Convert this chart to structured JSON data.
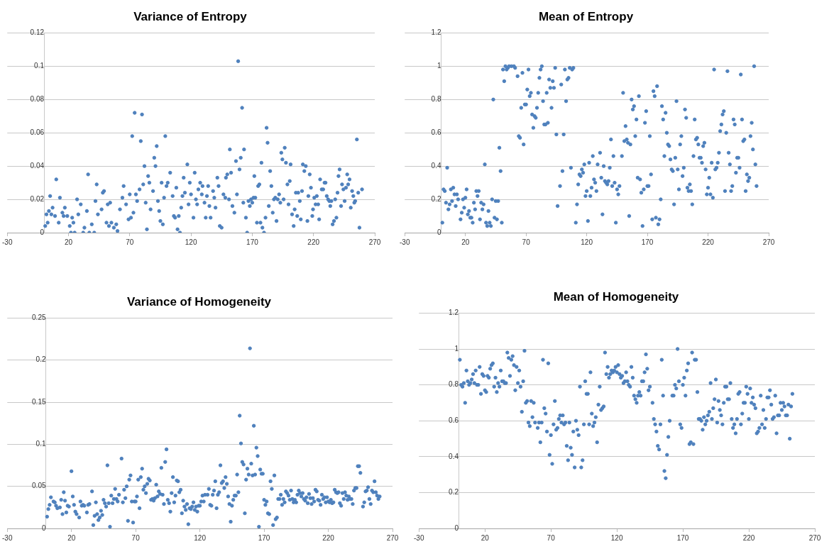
{
  "chart_data": [
    {
      "type": "scatter",
      "title": "Variance of Entropy",
      "color": "#4f81bd",
      "marker": "circle",
      "grid": "y",
      "xlim": [
        -30,
        270
      ],
      "xticks": [
        -30,
        20,
        70,
        120,
        170,
        220,
        270
      ],
      "ylim": [
        0,
        0.12
      ],
      "yticks": [
        0,
        0.02,
        0.04,
        0.06,
        0.08,
        0.1,
        0.12
      ],
      "x": [
        1,
        2,
        3,
        4,
        5,
        6,
        7,
        9,
        10,
        12,
        13,
        15,
        16,
        17,
        19,
        21,
        22,
        23,
        24,
        25,
        27,
        28,
        30,
        32,
        33,
        35,
        36,
        37,
        39,
        41,
        42,
        43,
        44,
        47,
        48,
        49,
        51,
        52,
        53,
        54,
        55,
        57,
        59,
        60,
        62,
        64,
        65,
        67,
        69,
        70,
        71,
        72,
        73,
        74,
        75,
        76,
        78,
        79,
        80,
        81,
        82,
        83,
        84,
        85,
        86,
        87,
        89,
        90,
        91,
        92,
        93,
        94,
        95,
        96,
        97,
        98,
        99,
        100,
        101,
        103,
        105,
        106,
        107,
        108,
        109,
        110,
        111,
        112,
        113,
        114,
        115,
        117,
        118,
        119,
        120,
        122,
        123,
        124,
        125,
        126,
        127.5,
        128.8,
        129.4,
        131,
        132,
        133,
        134,
        135,
        136,
        138,
        139,
        140,
        141.5,
        142.5,
        143.5,
        145,
        146.5,
        148,
        148.5,
        149.6,
        151,
        151.7,
        152.7,
        153.8,
        155.4,
        156.7,
        157.5,
        158.5,
        159.6,
        160.6,
        161.7,
        162.7,
        163.3,
        164.8,
        165.8,
        166.9,
        168,
        169,
        170,
        171,
        171.7,
        172.5,
        173.8,
        174.8,
        175.8,
        176.7,
        177.5,
        178.3,
        179.6,
        180.8,
        181.7,
        182.5,
        183.5,
        184.6,
        185.6,
        186.7,
        187.7,
        188.8,
        189.8,
        190.8,
        191.9,
        192.9,
        193.7,
        194.6,
        195.6,
        196.5,
        197.5,
        198.7,
        199.6,
        200.6,
        201.3,
        202.5,
        203.8,
        204.6,
        205.6,
        206.7,
        207.5,
        208.8,
        209.6,
        210.6,
        211.3,
        212.5,
        213.7,
        215,
        215.8,
        216.9,
        217.9,
        219,
        219.6,
        220.6,
        221.7,
        222.7,
        223.8,
        224.6,
        225.4,
        226.7,
        227.9,
        229,
        229.8,
        230.8,
        231.9,
        232.9,
        233.7,
        234.6,
        235.6,
        236.7,
        237.7,
        238.7,
        239.6,
        240.4,
        241.3,
        242.5,
        243.3,
        244.4,
        245.4,
        246.5,
        247.5,
        248.3,
        249.4,
        250.4,
        251.5,
        252.5,
        253.3,
        254,
        255.4,
        256.5,
        257.5,
        259.6
      ],
      "values": [
        0.004,
        0.011,
        0.006,
        0.013,
        0.022,
        0.011,
        0.015,
        0.01,
        0.032,
        0.006,
        0.021,
        0.012,
        0.01,
        0.015,
        0.01,
        0.004,
        0,
        0.009,
        0.006,
        0,
        0.02,
        0.011,
        0.017,
        0,
        0.003,
        0.013,
        0.035,
        0,
        0.005,
        0,
        0.019,
        0.029,
        0.011,
        0.014,
        0.024,
        0.025,
        0.006,
        0.017,
        0.004,
        0.018,
        0.006,
        0.003,
        0.005,
        0.001,
        0.014,
        0.021,
        0.028,
        0.017,
        0.008,
        0.023,
        0.009,
        0.058,
        0.012,
        0.072,
        0.023,
        0.019,
        0.026,
        0.055,
        0.071,
        0.029,
        0.04,
        0.018,
        0.002,
        0.034,
        0.03,
        0.014,
        0.025,
        0.045,
        0.04,
        0.052,
        0.019,
        0.013,
        0.007,
        0.03,
        0.005,
        0.021,
        0.058,
        0.028,
        0.03,
        0.036,
        0.022,
        0.01,
        0.009,
        0.027,
        0.002,
        0.01,
        0,
        0.015,
        0.022,
        0.033,
        0.024,
        0.041,
        0.017,
        0.03,
        0.023,
        0.009,
        0.036,
        0.02,
        0.017,
        0.026,
        0.03,
        0.023,
        0.028,
        0.018,
        0.009,
        0.022,
        0.028,
        0.016,
        0.009,
        0.025,
        0.021,
        0.015,
        0.033,
        0.028,
        0.004,
        0.003,
        0.023,
        0.021,
        0.033,
        0.035,
        0.02,
        0.05,
        0.036,
        0.016,
        0.012,
        0.043,
        0.023,
        0.103,
        0.038,
        0.045,
        0.075,
        0.018,
        0.05,
        0.009,
        0,
        0.019,
        0.016,
        0.02,
        0.018,
        0.021,
        0.034,
        0.021,
        0.006,
        0.028,
        0.029,
        0.006,
        0.042,
        0.003,
        0,
        0.009,
        0.063,
        0.054,
        0.016,
        0.037,
        0.028,
        0.012,
        0.02,
        0.021,
        0.007,
        0.02,
        0.023,
        0.018,
        0.048,
        0.044,
        0.02,
        0.051,
        0.042,
        0.029,
        0.017,
        0.031,
        0.041,
        0.011,
        0.004,
        0.014,
        0.024,
        0.01,
        0.024,
        0.019,
        0.008,
        0.025,
        0.041,
        0.037,
        0.04,
        0.007,
        0.022,
        0.035,
        0.027,
        0.01,
        0.014,
        0.021,
        0.017,
        0.022,
        0.017,
        0.008,
        0.032,
        0.026,
        0.026,
        0.03,
        0.03,
        0.022,
        0.02,
        0.019,
        0.016,
        0.019,
        0.005,
        0.007,
        0.02,
        0.009,
        0.024,
        0.034,
        0.038,
        0.016,
        0.029,
        0.026,
        0.019,
        0.027,
        0.035,
        0.029,
        0.032,
        0.015,
        0.025,
        0.022,
        0.018,
        0.019,
        0.056,
        0.024,
        0.003,
        0.026
      ]
    },
    {
      "type": "scatter",
      "title": "Mean of Entropy",
      "color": "#4f81bd",
      "marker": "circle",
      "grid": "y",
      "xlim": [
        -30,
        270
      ],
      "xticks": [
        -30,
        20,
        70,
        120,
        170,
        220,
        270
      ],
      "ylim": [
        0,
        1.2
      ],
      "yticks": [
        0,
        0.2,
        0.4,
        0.6,
        0.8,
        1,
        1.2
      ],
      "x": [
        1,
        2,
        3,
        4,
        5,
        6,
        7,
        8,
        9,
        10,
        11,
        12,
        13,
        14,
        16,
        17,
        18,
        19,
        20,
        21,
        22,
        23,
        24,
        25,
        26,
        27,
        28,
        29,
        30,
        31,
        32,
        33,
        34,
        35,
        36,
        37,
        38,
        39,
        40,
        41,
        42,
        43,
        44,
        45,
        46,
        47,
        48,
        49,
        50,
        51,
        52,
        53,
        54,
        55,
        56,
        58,
        60,
        61,
        63,
        64,
        65,
        66,
        67,
        68,
        69,
        70,
        71,
        72,
        73,
        74,
        75,
        76,
        77,
        78,
        79,
        80,
        81,
        82,
        83,
        84,
        85,
        86,
        87,
        88,
        89,
        90,
        91,
        92,
        93,
        94,
        95,
        96,
        98,
        99,
        100,
        101,
        102,
        103,
        104,
        105,
        106,
        107,
        108,
        109,
        111,
        112,
        113,
        114,
        115,
        116,
        117,
        118,
        119,
        120,
        121,
        122,
        123,
        124,
        125,
        126,
        127,
        128,
        129,
        131,
        132,
        133,
        134,
        135,
        136,
        137,
        138,
        139,
        140,
        141,
        142,
        143,
        144,
        145,
        146,
        147,
        149,
        150,
        151,
        152,
        153,
        154,
        155,
        156,
        157,
        158,
        159,
        160,
        161,
        162,
        163,
        164,
        165,
        166,
        167,
        168,
        169,
        170,
        171,
        172,
        173,
        174,
        175,
        176,
        177,
        178,
        179,
        180,
        181,
        182,
        183,
        184,
        185,
        186,
        187,
        188,
        189,
        190,
        191,
        192,
        193,
        194,
        195,
        196,
        197,
        198,
        199,
        200,
        201,
        202,
        203,
        204,
        205,
        206,
        207,
        208,
        209,
        210,
        211,
        212,
        213,
        214,
        215,
        216,
        217,
        218,
        219,
        220,
        221,
        222,
        223,
        224,
        225,
        226,
        227,
        228,
        229,
        230,
        231,
        232,
        233,
        234,
        235,
        236,
        237,
        238,
        239,
        240,
        241,
        242,
        243,
        244,
        245,
        246,
        247,
        248,
        249,
        250,
        251,
        252,
        253,
        254,
        255,
        256,
        257,
        258,
        259,
        260
      ],
      "values": [
        0.06,
        0.26,
        0.25,
        0.18,
        0.39,
        0.14,
        0.17,
        0.26,
        0.19,
        0.27,
        0.23,
        0.16,
        0.23,
        0.2,
        0.08,
        0.12,
        0.2,
        0.15,
        0.21,
        0.26,
        0.11,
        0.13,
        0.09,
        0.09,
        0.06,
        0.18,
        0.14,
        0.25,
        0.22,
        0.25,
        0.08,
        0.18,
        0.14,
        0.17,
        0.41,
        0.06,
        0.04,
        0.13,
        0.06,
        0.04,
        0.2,
        0.8,
        0.09,
        0.19,
        0.08,
        0.19,
        0.51,
        0.37,
        0.06,
        0.98,
        0.91,
        1,
        0.98,
        0.99,
        1,
        1,
        1,
        0.99,
        0.94,
        0.58,
        0.57,
        0.75,
        0.96,
        0.53,
        0.77,
        0.77,
        0.86,
        0.98,
        0.82,
        0.84,
        0.71,
        0.63,
        0.7,
        0.69,
        0.75,
        0.84,
        0.93,
        0.98,
        1,
        0.79,
        0.65,
        0.65,
        0.84,
        0.66,
        0.92,
        0.87,
        0.75,
        0.91,
        0.87,
        0.99,
        0.59,
        0.16,
        0.28,
        0.89,
        0.37,
        0.59,
        0.98,
        0.79,
        0.92,
        0.93,
        0.99,
        0.39,
        0.98,
        0.99,
        0.06,
        0.17,
        0.29,
        0.35,
        0.34,
        0.38,
        0.36,
        0.41,
        0.22,
        0.25,
        0.07,
        0.42,
        0.22,
        0.27,
        0.46,
        0.32,
        0.3,
        0.25,
        0.41,
        0.48,
        0.33,
        0.11,
        0.4,
        0.31,
        0.3,
        0.29,
        0.31,
        0.39,
        0.56,
        0.28,
        0.46,
        0.3,
        0.06,
        0.26,
        0.23,
        0.28,
        0.46,
        0.84,
        0.55,
        0.64,
        0.56,
        0.54,
        0.1,
        0.53,
        0.8,
        0.74,
        0.76,
        0.58,
        0.68,
        0.33,
        0.82,
        0.32,
        0.24,
        0.04,
        0.26,
        0.66,
        0.73,
        0.28,
        0.28,
        0.58,
        0.35,
        0.08,
        0.85,
        0.82,
        0.09,
        0.88,
        0.05,
        0.08,
        0.2,
        0.76,
        0.68,
        0.46,
        0.72,
        0.6,
        0.53,
        0.52,
        0.44,
        0.38,
        0.37,
        0.17,
        0.45,
        0.79,
        0.38,
        0.26,
        0.53,
        0.58,
        0.34,
        0.39,
        0.74,
        0.69,
        0.27,
        0.25,
        0.29,
        0.25,
        0.17,
        0.46,
        0.68,
        0.56,
        0.57,
        0.53,
        0.45,
        0.45,
        0.42,
        0.52,
        0.54,
        0.38,
        0.23,
        0.27,
        0.33,
        0.23,
        0.42,
        0.21,
        0.98,
        0.38,
        0.39,
        0.42,
        0.48,
        0.61,
        0.65,
        0.71,
        0.73,
        0.25,
        0.6,
        0.97,
        0.48,
        0.41,
        0.25,
        0.28,
        0.68,
        0.65,
        0.36,
        0.45,
        0.45,
        0.39,
        0.95,
        0.68,
        0.55,
        0.56,
        0.25,
        0.35,
        0.31,
        0.33,
        0.58,
        0.66,
        0.5,
        1,
        0.41,
        0.28
      ]
    },
    {
      "type": "scatter",
      "title": "Variance of Homogeneity",
      "color": "#4f81bd",
      "marker": "circle",
      "grid": "y",
      "xlim": [
        -30,
        270
      ],
      "xticks": [
        -30,
        20,
        70,
        120,
        170,
        220,
        270
      ],
      "ylim": [
        0,
        0.25
      ],
      "yticks": [
        0,
        0.05,
        0.1,
        0.15,
        0.2,
        0.25
      ],
      "x": [
        1,
        2,
        3,
        4,
        6,
        7,
        8,
        9,
        11,
        12,
        13,
        14,
        15,
        16,
        17,
        18,
        20,
        21,
        22,
        23,
        24,
        26,
        27,
        28,
        29,
        30,
        32,
        33,
        34,
        36,
        37,
        38,
        39,
        40,
        41,
        42,
        43,
        44,
        45,
        46,
        47,
        48,
        49,
        50,
        51,
        52,
        53,
        54,
        55,
        56,
        57,
        59,
        60,
        61,
        62,
        63,
        64,
        65,
        66,
        67,
        68,
        69,
        70,
        71,
        72,
        73,
        74,
        75,
        76,
        77,
        78,
        79,
        80,
        81,
        82,
        83,
        84,
        85,
        86,
        87,
        88,
        89,
        90,
        91,
        92,
        93,
        94,
        95,
        96,
        97,
        98,
        99,
        100,
        101,
        102,
        103,
        104,
        105,
        106,
        107,
        108,
        109,
        110,
        111,
        112,
        113,
        114,
        115,
        116,
        117,
        118,
        119,
        120,
        121,
        122,
        123,
        124,
        126,
        127,
        128,
        129,
        130,
        131,
        132,
        133,
        134,
        135,
        136,
        137,
        138,
        139,
        140,
        141,
        142,
        143,
        144,
        145,
        146,
        147,
        148,
        149,
        150,
        151,
        152,
        153,
        154,
        155,
        156,
        157,
        158,
        159,
        160,
        161,
        162,
        163,
        164,
        165,
        166,
        167,
        168,
        169,
        170,
        171,
        172,
        173,
        174,
        175,
        176,
        177,
        178,
        179,
        180,
        181,
        182,
        183,
        184,
        185,
        186,
        187,
        188,
        189,
        190,
        191,
        192,
        193,
        194,
        195,
        196,
        197,
        198,
        199,
        200,
        201,
        202,
        203,
        204,
        205,
        206,
        207,
        208,
        209,
        210,
        211,
        212,
        213,
        214,
        215,
        216,
        217,
        218,
        219,
        220,
        221,
        222,
        223,
        224,
        225,
        226,
        227,
        228,
        229,
        230,
        231,
        232,
        233,
        234,
        235,
        236,
        237,
        238,
        239,
        240,
        241,
        242,
        243,
        244,
        245,
        247,
        248,
        249,
        250,
        251,
        252,
        253,
        254,
        255,
        256,
        257,
        258,
        259,
        260
      ],
      "values": [
        0.014,
        0.023,
        0.028,
        0.037,
        0.032,
        0.031,
        0.027,
        0.024,
        0.025,
        0.034,
        0.017,
        0.043,
        0.033,
        0.019,
        0.027,
        0.026,
        0.068,
        0.038,
        0.028,
        0.02,
        0.017,
        0.013,
        0.032,
        0.027,
        0.028,
        0.027,
        0.019,
        0.028,
        0.029,
        0.044,
        0.004,
        0.015,
        0.031,
        0.017,
        0.01,
        0.013,
        0.021,
        0.016,
        0.034,
        0.03,
        0.026,
        0.075,
        0.03,
        0.002,
        0.039,
        0.03,
        0.035,
        0.047,
        0.035,
        0.032,
        0.04,
        0.083,
        0.031,
        0.046,
        0.036,
        0.05,
        0.009,
        0.058,
        0.063,
        0.032,
        0.007,
        0.032,
        0.032,
        0.038,
        0.058,
        0.024,
        0.061,
        0.071,
        0.046,
        0.05,
        0.042,
        0.053,
        0.059,
        0.057,
        0.034,
        0.035,
        0.033,
        0.036,
        0.052,
        0.038,
        0.044,
        0.041,
        0.072,
        0.04,
        0.029,
        0.079,
        0.094,
        0.034,
        0.03,
        0.02,
        0.042,
        0.061,
        0.031,
        0.039,
        0.057,
        0.056,
        0.043,
        0.046,
        0.018,
        0.033,
        0.026,
        0.022,
        0.029,
        0.005,
        0.024,
        0.023,
        0.026,
        0.031,
        0.022,
        0.026,
        0.02,
        0.027,
        0.027,
        0.032,
        0.039,
        0.032,
        0.04,
        0.04,
        0.047,
        0.028,
        0.027,
        0.04,
        0.045,
        0.056,
        0.024,
        0.04,
        0.043,
        0.075,
        0.054,
        0.056,
        0.048,
        0.061,
        0.053,
        0.038,
        0.029,
        0.008,
        0.027,
        0.034,
        0.039,
        0.039,
        0.064,
        0.043,
        0.134,
        0.101,
        0.079,
        0.076,
        0.018,
        0.058,
        0.071,
        0.064,
        0.214,
        0.077,
        0.063,
        0.122,
        0.064,
        0.096,
        0.086,
        0.002,
        0.07,
        0.065,
        0.065,
        0.034,
        0.028,
        0.032,
        0.018,
        0.017,
        0.056,
        0.047,
        0.004,
        0.063,
        0.011,
        0.013,
        0.035,
        0.035,
        0.04,
        0.028,
        0.035,
        0.031,
        0.044,
        0.042,
        0.039,
        0.034,
        0.045,
        0.035,
        0.031,
        0.034,
        0.031,
        0.04,
        0.045,
        0.042,
        0.038,
        0.042,
        0.035,
        0.033,
        0.037,
        0.03,
        0.041,
        0.036,
        0.029,
        0.036,
        0.032,
        0.046,
        0.044,
        0.034,
        0.033,
        0.028,
        0.04,
        0.035,
        0.037,
        0.031,
        0.037,
        0.032,
        0.031,
        0.034,
        0.03,
        0.031,
        0.046,
        0.043,
        0.042,
        0.043,
        0.03,
        0.027,
        0.042,
        0.035,
        0.043,
        0.039,
        0.034,
        0.038,
        0.035,
        0.035,
        0.029,
        0.045,
        0.048,
        0.048,
        0.074,
        0.074,
        0.066,
        0.026,
        0.031,
        0.044,
        0.045,
        0.049,
        0.035,
        0.029,
        0.045,
        0.043,
        0.056,
        0.043,
        0.039,
        0.035,
        0.038
      ]
    },
    {
      "type": "scatter",
      "title": "Mean of Homogeneity",
      "color": "#4f81bd",
      "marker": "circle",
      "grid": "y",
      "xlim": [
        -30,
        270
      ],
      "xticks": [
        -30,
        20,
        70,
        120,
        170,
        220,
        270
      ],
      "ylim": [
        0,
        1.2
      ],
      "yticks": [
        0,
        0.2,
        0.4,
        0.6,
        0.8,
        1,
        1.2
      ],
      "x": [
        1,
        2,
        3,
        4,
        5,
        6,
        7,
        8,
        9,
        10,
        11,
        12,
        13,
        14,
        15,
        16,
        17,
        18,
        19,
        20,
        21,
        22,
        23,
        24,
        25,
        26,
        27,
        28,
        29,
        30,
        31,
        32,
        33,
        34,
        35,
        36,
        37,
        38,
        39,
        40,
        41,
        42,
        43,
        44,
        45,
        46,
        47,
        48,
        49,
        50,
        51,
        52,
        53,
        54,
        55,
        56,
        57,
        58,
        60,
        61,
        62,
        63,
        64,
        65,
        66,
        67,
        68,
        69,
        70,
        71,
        72,
        73,
        74,
        75,
        76,
        77,
        78,
        79,
        80,
        81,
        82,
        83,
        84,
        85,
        86,
        87,
        88,
        89,
        90,
        91,
        92,
        93,
        94,
        95,
        96,
        97,
        98,
        99,
        100,
        101,
        102,
        103,
        104,
        105,
        106,
        107,
        108,
        109,
        110,
        111,
        112,
        113,
        114,
        115,
        116,
        117,
        118,
        119,
        120,
        121,
        122,
        123,
        124,
        125,
        126,
        127,
        128,
        129,
        130,
        131,
        132,
        133,
        134,
        135,
        136,
        137,
        138,
        139,
        140,
        141,
        142,
        143,
        144,
        145,
        147,
        148,
        149,
        150,
        151,
        152,
        153,
        154,
        155,
        156,
        157,
        158,
        159,
        160,
        162,
        163,
        164,
        165,
        166,
        167,
        168,
        169,
        170,
        171,
        172,
        173,
        174,
        175,
        176,
        177,
        178,
        179,
        180,
        181,
        182,
        183,
        184,
        185,
        186,
        187,
        188,
        189,
        190,
        191,
        192,
        193,
        194,
        195,
        196,
        197,
        198,
        199,
        200,
        201,
        202,
        203,
        204,
        205,
        206,
        207,
        208,
        209,
        210,
        211,
        212,
        213,
        214,
        215,
        216,
        217,
        218,
        219,
        220,
        221,
        222,
        223,
        224,
        225,
        226,
        227,
        228,
        229,
        230,
        231,
        232,
        233,
        234,
        235,
        236,
        237,
        238,
        239,
        240,
        241,
        242,
        243,
        244,
        245,
        246,
        247,
        248,
        249,
        250,
        251,
        252,
        253
      ],
      "values": [
        0.94,
        0.8,
        0.79,
        0.81,
        0.7,
        0.88,
        0.82,
        0.8,
        0.81,
        0.83,
        0.86,
        0.81,
        0.88,
        0.8,
        0.8,
        0.9,
        0.75,
        0.86,
        0.85,
        0.77,
        0.76,
        0.85,
        0.84,
        0.89,
        0.91,
        0.92,
        0.79,
        0.84,
        0.76,
        0.81,
        0.79,
        0.88,
        0.82,
        0.82,
        0.81,
        0.81,
        0.98,
        0.95,
        0.85,
        0.94,
        0.96,
        0.91,
        0.77,
        0.9,
        0.81,
        0.88,
        0.79,
        0.65,
        0.82,
        0.99,
        0.7,
        0.71,
        0.59,
        0.57,
        0.71,
        0.62,
        0.7,
        0.59,
        0.56,
        0.59,
        0.48,
        0.59,
        0.94,
        0.67,
        0.64,
        0.54,
        0.92,
        0.41,
        0.52,
        0.36,
        0.58,
        0.71,
        0.55,
        0.56,
        0.61,
        0.63,
        0.59,
        0.63,
        0.58,
        0.59,
        0.46,
        0.38,
        0.59,
        0.45,
        0.41,
        0.54,
        0.34,
        0.6,
        0.55,
        0.52,
        0.79,
        0.34,
        0.38,
        0.58,
        0.82,
        0.75,
        0.75,
        0.58,
        0.87,
        0.64,
        0.57,
        0.59,
        0.62,
        0.48,
        0.69,
        0.79,
        0.66,
        0.67,
        0.68,
        0.98,
        0.86,
        0.9,
        0.84,
        0.86,
        0.88,
        0.87,
        0.88,
        0.9,
        0.87,
        0.91,
        0.86,
        0.84,
        0.85,
        0.81,
        0.82,
        0.87,
        0.82,
        0.8,
        0.79,
        0.9,
        0.84,
        0.74,
        0.72,
        0.7,
        0.74,
        0.76,
        0.74,
        0.82,
        0.82,
        0.87,
        0.97,
        0.89,
        0.77,
        0.79,
        0.7,
        0.61,
        0.58,
        0.54,
        0.46,
        0.44,
        0.58,
        0.94,
        0.74,
        0.32,
        0.28,
        0.41,
        0.51,
        0.6,
        0.74,
        0.74,
        0.8,
        0.78,
        1,
        0.82,
        0.58,
        0.56,
        0.8,
        0.84,
        0.74,
        0.88,
        0.92,
        0.47,
        0.48,
        0.98,
        0.47,
        0.94,
        0.94,
        0.76,
        0.61,
        0.61,
        0.6,
        0.55,
        0.62,
        0.58,
        0.6,
        0.63,
        0.65,
        0.81,
        0.61,
        0.67,
        0.72,
        0.83,
        0.59,
        0.71,
        0.66,
        0.63,
        0.58,
        0.7,
        0.79,
        0.79,
        0.72,
        0.72,
        0.81,
        0.61,
        0.56,
        0.58,
        0.53,
        0.61,
        0.75,
        0.76,
        0.58,
        0.64,
        0.7,
        0.7,
        0.79,
        0.75,
        0.61,
        0.78,
        0.7,
        0.73,
        0.69,
        0.67,
        0.53,
        0.54,
        0.56,
        0.74,
        0.58,
        0.66,
        0.56,
        0.61,
        0.73,
        0.73,
        0.77,
        0.69,
        0.61,
        0.62,
        0.74,
        0.53,
        0.63,
        0.63,
        0.7,
        0.66,
        0.7,
        0.68,
        0.63,
        0.63,
        0.69,
        0.5,
        0.68,
        0.75
      ]
    }
  ]
}
